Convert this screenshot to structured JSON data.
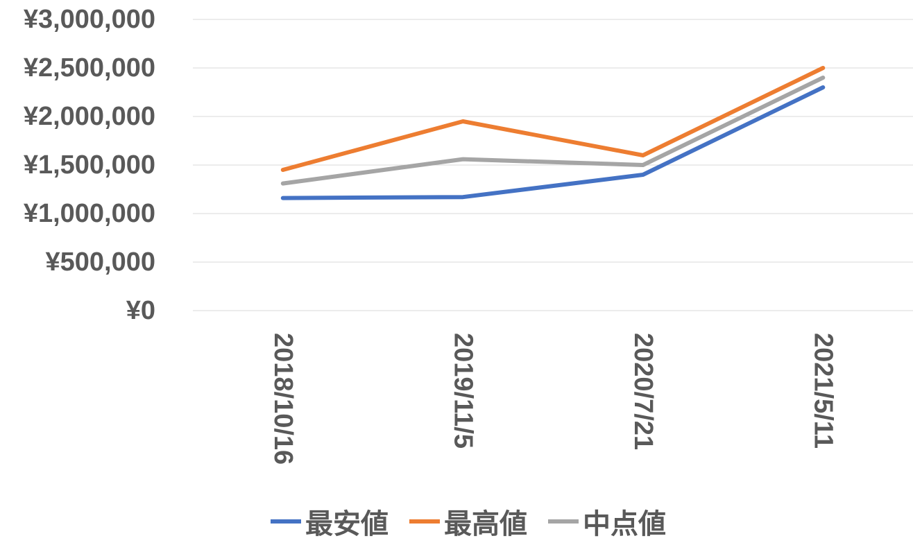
{
  "chart_data": {
    "type": "line",
    "categories": [
      "2018/10/16",
      "2019/11/5",
      "2020/7/21",
      "2021/5/11"
    ],
    "y_ticks": [
      "¥0",
      "¥500,000",
      "¥1,000,000",
      "¥1,500,000",
      "¥2,000,000",
      "¥2,500,000",
      "¥3,000,000"
    ],
    "ylim": [
      0,
      3000000
    ],
    "grid": true,
    "legend_position": "bottom",
    "series": [
      {
        "name": "最安値",
        "color": "#4472C4",
        "values": [
          1160000,
          1170000,
          1400000,
          2300000
        ]
      },
      {
        "name": "最高値",
        "color": "#ED7D31",
        "values": [
          1450000,
          1950000,
          1600000,
          2500000
        ]
      },
      {
        "name": "中点値",
        "color": "#A5A5A5",
        "values": [
          1310000,
          1560000,
          1500000,
          2400000
        ]
      }
    ]
  }
}
